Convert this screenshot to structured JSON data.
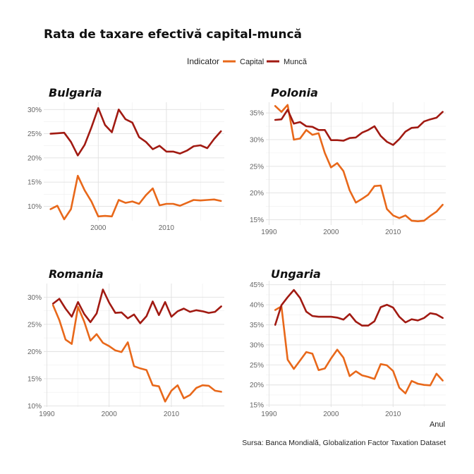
{
  "title": "Rata de taxare efectivă capital-muncă",
  "legend": {
    "title": "Indicator",
    "items": [
      {
        "label": "Capital",
        "color": "#e8681a"
      },
      {
        "label": "Muncă",
        "color": "#a11a12"
      }
    ]
  },
  "xlabel": "Anul",
  "caption": "Sursa: Banca Mondială, Globalization Factor Taxation Dataset",
  "chart_data": [
    {
      "type": "line",
      "title": "Bulgaria",
      "xlim": [
        1992,
        2018.5
      ],
      "ylim": [
        7,
        31.5
      ],
      "xticks": [
        2000,
        2010
      ],
      "yticks": [
        10,
        15,
        20,
        25,
        30
      ],
      "x": [
        1993,
        1994,
        1995,
        1996,
        1997,
        1998,
        1999,
        2000,
        2001,
        2002,
        2003,
        2004,
        2005,
        2006,
        2007,
        2008,
        2009,
        2010,
        2011,
        2012,
        2013,
        2014,
        2015,
        2016,
        2017,
        2018
      ],
      "series": [
        {
          "name": "Capital",
          "values": [
            9.4,
            10.1,
            7.3,
            9.4,
            16.3,
            13.3,
            11.0,
            7.9,
            8.0,
            7.9,
            11.3,
            10.7,
            11.0,
            10.5,
            12.3,
            13.7,
            10.2,
            10.5,
            10.5,
            10.1,
            10.7,
            11.3,
            11.2,
            11.3,
            11.4,
            11.1
          ]
        },
        {
          "name": "Muncă",
          "values": [
            25.0,
            25.1,
            25.2,
            23.3,
            20.5,
            22.7,
            26.3,
            30.3,
            26.8,
            25.3,
            30.0,
            28.0,
            27.3,
            24.3,
            23.3,
            21.8,
            22.5,
            21.3,
            21.3,
            20.9,
            21.5,
            22.4,
            22.6,
            22.0,
            23.9,
            25.5
          ]
        }
      ]
    },
    {
      "type": "line",
      "title": "Polonia",
      "xlim": [
        1989.5,
        2018.5
      ],
      "ylim": [
        14,
        37
      ],
      "xticks": [
        1990,
        2000,
        2010
      ],
      "yticks": [
        15,
        20,
        25,
        30,
        35
      ],
      "x": [
        1991,
        1992,
        1993,
        1994,
        1995,
        1996,
        1997,
        1998,
        1999,
        2000,
        2001,
        2002,
        2003,
        2004,
        2005,
        2006,
        2007,
        2008,
        2009,
        2010,
        2011,
        2012,
        2013,
        2014,
        2015,
        2016,
        2017,
        2018
      ],
      "series": [
        {
          "name": "Capital",
          "values": [
            36.3,
            35.2,
            36.5,
            30.0,
            30.2,
            31.8,
            30.9,
            31.2,
            27.5,
            24.8,
            25.6,
            24.1,
            20.5,
            18.2,
            18.9,
            19.7,
            21.3,
            21.4,
            17.0,
            15.8,
            15.3,
            15.8,
            14.8,
            14.7,
            14.8,
            15.7,
            16.5,
            17.8
          ]
        },
        {
          "name": "Muncă",
          "values": [
            33.7,
            33.8,
            35.6,
            33.0,
            33.3,
            32.5,
            32.4,
            31.8,
            31.8,
            29.9,
            29.9,
            29.8,
            30.3,
            30.4,
            31.3,
            31.8,
            32.5,
            30.7,
            29.6,
            29.0,
            30.1,
            31.5,
            32.2,
            32.3,
            33.4,
            33.8,
            34.1,
            35.2
          ]
        }
      ]
    },
    {
      "type": "line",
      "title": "Romania",
      "xlim": [
        1989.5,
        2018.5
      ],
      "ylim": [
        9.8,
        32.5
      ],
      "xticks": [
        1990,
        2000,
        2010
      ],
      "yticks": [
        10,
        15,
        20,
        25,
        30
      ],
      "x": [
        1991,
        1992,
        1993,
        1994,
        1995,
        1996,
        1997,
        1998,
        1999,
        2000,
        2001,
        2002,
        2003,
        2004,
        2005,
        2006,
        2007,
        2008,
        2009,
        2010,
        2011,
        2012,
        2013,
        2014,
        2015,
        2016,
        2017,
        2018
      ],
      "series": [
        {
          "name": "Capital",
          "values": [
            28.5,
            25.8,
            22.2,
            21.4,
            28.2,
            25.5,
            22.0,
            23.2,
            21.6,
            21.0,
            20.2,
            19.9,
            21.7,
            17.3,
            16.9,
            16.6,
            13.8,
            13.6,
            10.8,
            12.8,
            13.8,
            11.4,
            12.0,
            13.3,
            13.8,
            13.7,
            12.8,
            12.6
          ]
        },
        {
          "name": "Muncă",
          "values": [
            28.8,
            29.7,
            27.9,
            26.4,
            29.1,
            26.9,
            25.4,
            27.0,
            31.4,
            29.0,
            27.1,
            27.2,
            26.1,
            26.8,
            25.2,
            26.5,
            29.2,
            26.7,
            29.1,
            26.4,
            27.4,
            27.9,
            27.3,
            27.6,
            27.4,
            27.1,
            27.3,
            28.3
          ]
        }
      ]
    },
    {
      "type": "line",
      "title": "Ungaria",
      "xlim": [
        1989.5,
        2018.5
      ],
      "ylim": [
        14.5,
        46
      ],
      "xticks": [
        1990,
        2000,
        2010
      ],
      "yticks": [
        15,
        20,
        25,
        30,
        35,
        40,
        45
      ],
      "x": [
        1991,
        1992,
        1993,
        1994,
        1995,
        1996,
        1997,
        1998,
        1999,
        2000,
        2001,
        2002,
        2003,
        2004,
        2005,
        2006,
        2007,
        2008,
        2009,
        2010,
        2011,
        2012,
        2013,
        2014,
        2015,
        2016,
        2017,
        2018
      ],
      "series": [
        {
          "name": "Capital",
          "values": [
            38.7,
            39.6,
            26.3,
            24.0,
            26.1,
            28.2,
            27.8,
            23.7,
            24.1,
            26.6,
            28.8,
            26.8,
            22.2,
            23.4,
            22.4,
            22.0,
            21.5,
            25.2,
            24.9,
            23.5,
            19.3,
            17.9,
            21.0,
            20.3,
            20.0,
            19.9,
            22.8,
            21.1
          ]
        },
        {
          "name": "Muncă",
          "values": [
            35.0,
            39.9,
            41.9,
            43.7,
            41.7,
            38.3,
            37.2,
            37.0,
            37.0,
            37.0,
            36.8,
            36.3,
            37.7,
            35.8,
            34.8,
            34.8,
            35.9,
            39.4,
            40.0,
            39.3,
            37.0,
            35.6,
            36.4,
            36.1,
            36.7,
            37.9,
            37.6,
            36.7
          ]
        }
      ]
    }
  ]
}
